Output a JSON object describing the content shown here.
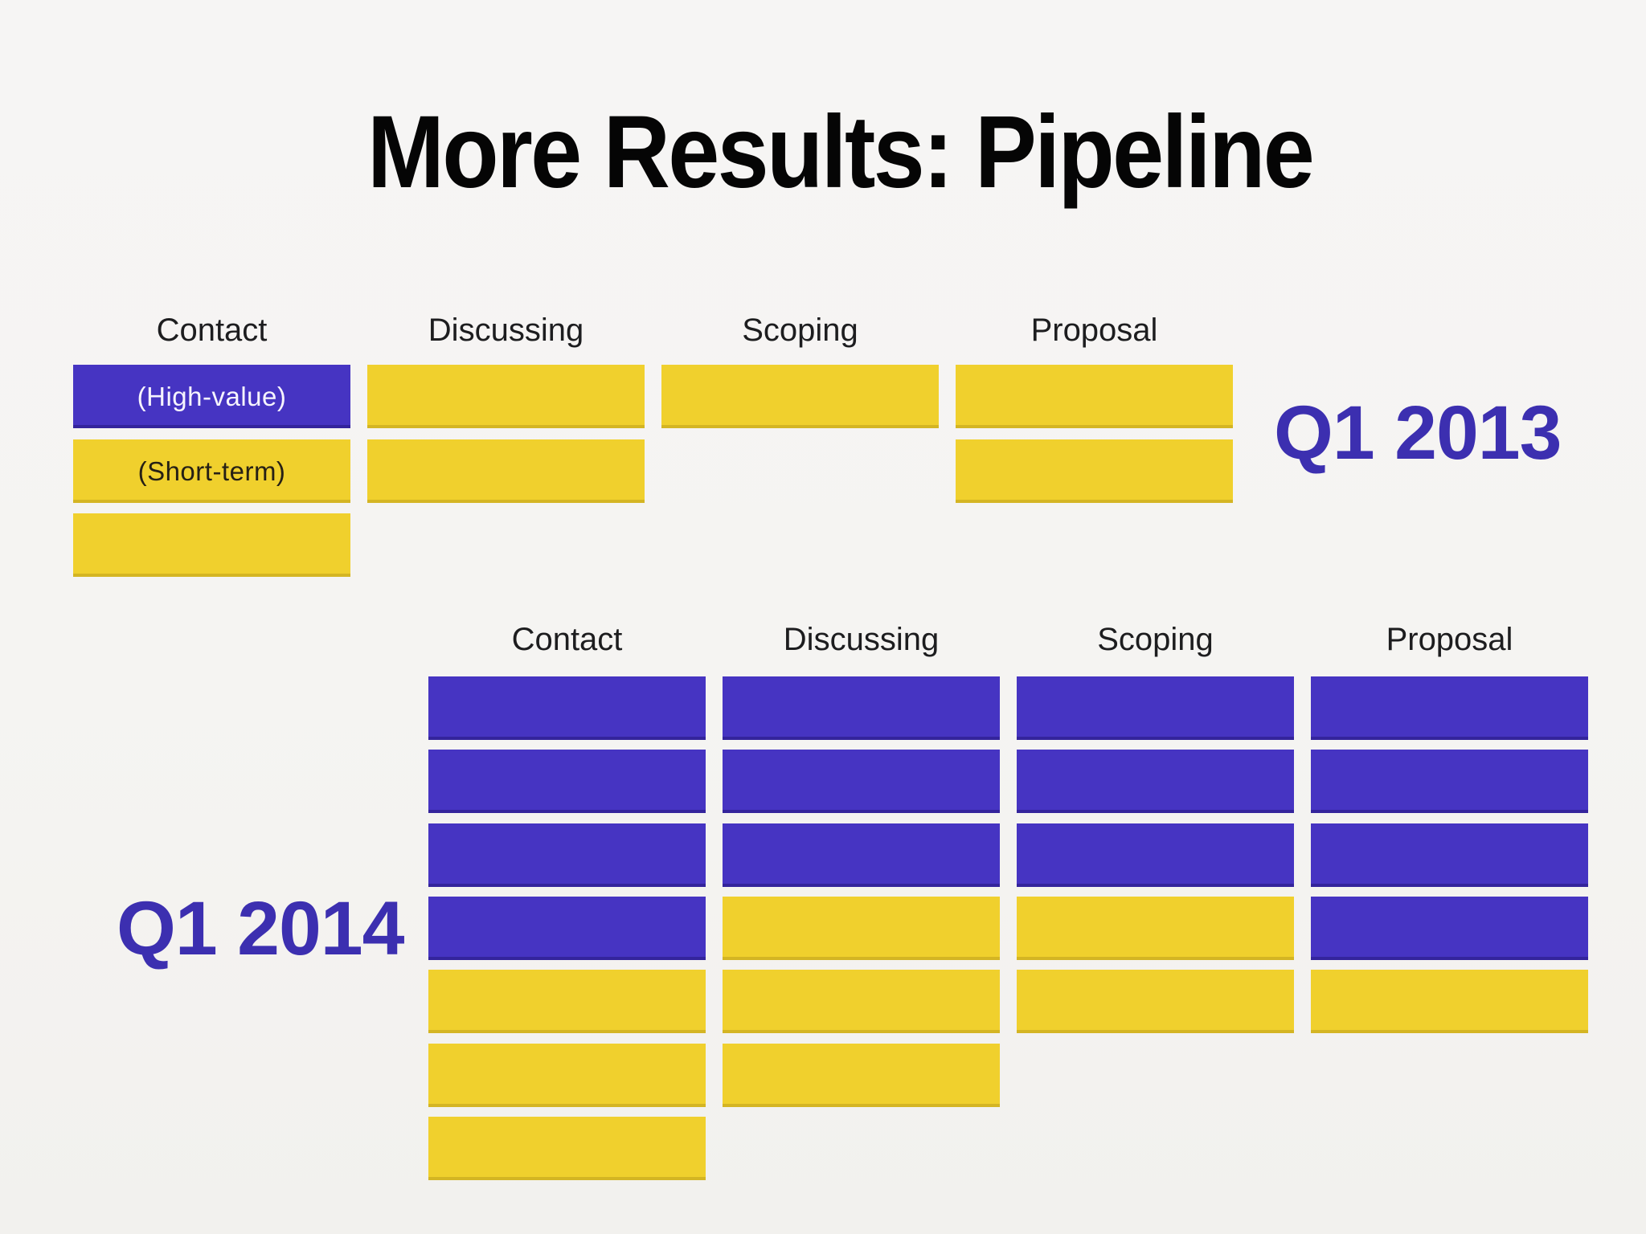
{
  "title": "More Results: Pipeline",
  "stages": [
    "Contact",
    "Discussing",
    "Scoping",
    "Proposal"
  ],
  "legend": {
    "high_value_label": "(High-value)",
    "short_term_label": "(Short-term)"
  },
  "colors": {
    "purple": "#4634c2",
    "yellow": "#f0d02d",
    "background": "#f5f4f2",
    "title_text": "#050505",
    "header_text": "#1d1d1f",
    "year_label_text": "#3c2fb0"
  },
  "sections": [
    {
      "id": "q1-2013",
      "label": "Q1 2013",
      "label_side": "right",
      "columns": [
        {
          "header": "Contact",
          "bars": [
            {
              "color": "purple",
              "text": "(High-value)"
            },
            {
              "color": "yellow",
              "text": "(Short-term)"
            },
            {
              "color": "yellow",
              "text": ""
            }
          ]
        },
        {
          "header": "Discussing",
          "bars": [
            {
              "color": "yellow",
              "text": ""
            },
            {
              "color": "yellow",
              "text": ""
            }
          ]
        },
        {
          "header": "Scoping",
          "bars": [
            {
              "color": "yellow",
              "text": ""
            }
          ]
        },
        {
          "header": "Proposal",
          "bars": [
            {
              "color": "yellow",
              "text": ""
            },
            {
              "color": "yellow",
              "text": ""
            }
          ]
        }
      ]
    },
    {
      "id": "q1-2014",
      "label": "Q1 2014",
      "label_side": "left",
      "columns": [
        {
          "header": "Contact",
          "bars": [
            {
              "color": "purple",
              "text": ""
            },
            {
              "color": "purple",
              "text": ""
            },
            {
              "color": "purple",
              "text": ""
            },
            {
              "color": "purple",
              "text": ""
            },
            {
              "color": "yellow",
              "text": ""
            },
            {
              "color": "yellow",
              "text": ""
            },
            {
              "color": "yellow",
              "text": ""
            }
          ]
        },
        {
          "header": "Discussing",
          "bars": [
            {
              "color": "purple",
              "text": ""
            },
            {
              "color": "purple",
              "text": ""
            },
            {
              "color": "purple",
              "text": ""
            },
            {
              "color": "yellow",
              "text": ""
            },
            {
              "color": "yellow",
              "text": ""
            },
            {
              "color": "yellow",
              "text": ""
            }
          ]
        },
        {
          "header": "Scoping",
          "bars": [
            {
              "color": "purple",
              "text": ""
            },
            {
              "color": "purple",
              "text": ""
            },
            {
              "color": "purple",
              "text": ""
            },
            {
              "color": "yellow",
              "text": ""
            },
            {
              "color": "yellow",
              "text": ""
            }
          ]
        },
        {
          "header": "Proposal",
          "bars": [
            {
              "color": "purple",
              "text": ""
            },
            {
              "color": "purple",
              "text": ""
            },
            {
              "color": "purple",
              "text": ""
            },
            {
              "color": "purple",
              "text": ""
            },
            {
              "color": "yellow",
              "text": ""
            }
          ]
        }
      ]
    }
  ],
  "chart_data": {
    "type": "bar",
    "subtype": "unit-chart (1 block = 1 deal)",
    "title": "More Results: Pipeline",
    "categories": [
      "Contact",
      "Discussing",
      "Scoping",
      "Proposal"
    ],
    "groups": [
      {
        "name": "Q1 2013",
        "series": [
          {
            "name": "High-value",
            "values": [
              1,
              0,
              0,
              0
            ]
          },
          {
            "name": "Short-term",
            "values": [
              2,
              2,
              1,
              2
            ]
          }
        ],
        "totals": [
          3,
          2,
          1,
          2
        ]
      },
      {
        "name": "Q1 2014",
        "series": [
          {
            "name": "High-value",
            "values": [
              4,
              3,
              3,
              4
            ]
          },
          {
            "name": "Short-term",
            "values": [
              3,
              3,
              2,
              1
            ]
          }
        ],
        "totals": [
          7,
          6,
          5,
          5
        ]
      }
    ],
    "legend": [
      {
        "label": "(High-value)",
        "color": "#4634c2"
      },
      {
        "label": "(Short-term)",
        "color": "#f0d02d"
      }
    ],
    "legend_position": "inline-first-bars",
    "grid": false,
    "orientation": "columns-of-stacked-blocks"
  }
}
